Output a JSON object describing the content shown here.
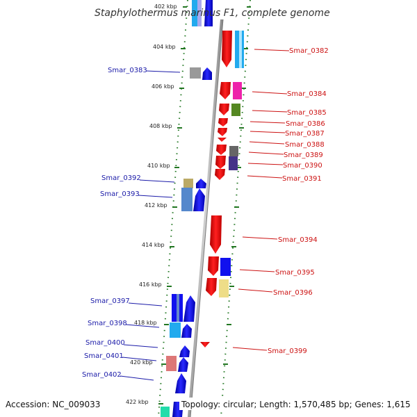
{
  "title": "Staphylothermus marinus F1, complete genome",
  "footer": {
    "accession": "Accession: NC_009033",
    "topology": "Topology: circular; Length: 1,570,485 bp; Genes: 1,615"
  },
  "ticks": [
    {
      "label": "402 kbp"
    },
    {
      "label": "404 kbp"
    },
    {
      "label": "406 kbp"
    },
    {
      "label": "408 kbp"
    },
    {
      "label": "410 kbp"
    },
    {
      "label": "412 kbp"
    },
    {
      "label": "414 kbp"
    },
    {
      "label": "416 kbp"
    },
    {
      "label": "418 kbp"
    },
    {
      "label": "420 kbp"
    },
    {
      "label": "422 kbp"
    }
  ],
  "genes_left": [
    {
      "name": "Smar_0383"
    },
    {
      "name": "Smar_0392"
    },
    {
      "name": "Smar_0393"
    },
    {
      "name": "Smar_0397"
    },
    {
      "name": "Smar_0398"
    },
    {
      "name": "Smar_0400"
    },
    {
      "name": "Smar_0401"
    },
    {
      "name": "Smar_0402"
    }
  ],
  "genes_right": [
    {
      "name": "Smar_0382"
    },
    {
      "name": "Smar_0384"
    },
    {
      "name": "Smar_0385"
    },
    {
      "name": "Smar_0386"
    },
    {
      "name": "Smar_0387"
    },
    {
      "name": "Smar_0388"
    },
    {
      "name": "Smar_0389"
    },
    {
      "name": "Smar_0390"
    },
    {
      "name": "Smar_0391"
    },
    {
      "name": "Smar_0394"
    },
    {
      "name": "Smar_0395"
    },
    {
      "name": "Smar_0396"
    },
    {
      "name": "Smar_0399"
    }
  ],
  "colors": {
    "forward": "#0000ee",
    "reverse": "#ee0000",
    "backbone": "#888888",
    "ticks": "#227722",
    "left_label": "#1a1aa8",
    "right_label": "#cc1111"
  }
}
